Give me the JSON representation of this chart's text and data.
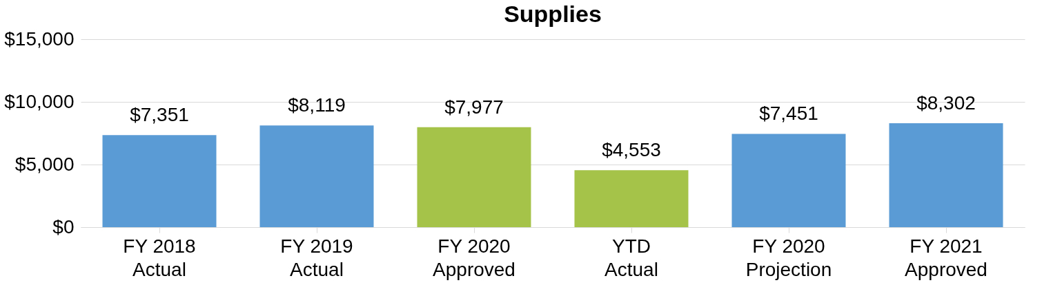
{
  "chart_data": {
    "type": "bar",
    "title": "Supplies",
    "categories": [
      "FY 2018 Actual",
      "FY 2019 Actual",
      "FY 2020 Approved",
      "YTD Actual",
      "FY 2020 Projection",
      "FY 2021 Approved"
    ],
    "values": [
      7351,
      8119,
      7977,
      4553,
      7451,
      8302
    ],
    "colors": [
      "#5b9bd5",
      "#5b9bd5",
      "#a5c249",
      "#a5c249",
      "#5b9bd5",
      "#5b9bd5"
    ],
    "value_labels": [
      "$7,351",
      "$8,119",
      "$7,977",
      "$4,553",
      "$7,451",
      "$8,302"
    ],
    "ylim": [
      0,
      15000
    ],
    "yticks": [
      {
        "value": 0,
        "label": "$0"
      },
      {
        "value": 5000,
        "label": "$5,000"
      },
      {
        "value": 10000,
        "label": "$10,000"
      },
      {
        "value": 15000,
        "label": "$15,000"
      }
    ],
    "grid": "y"
  }
}
